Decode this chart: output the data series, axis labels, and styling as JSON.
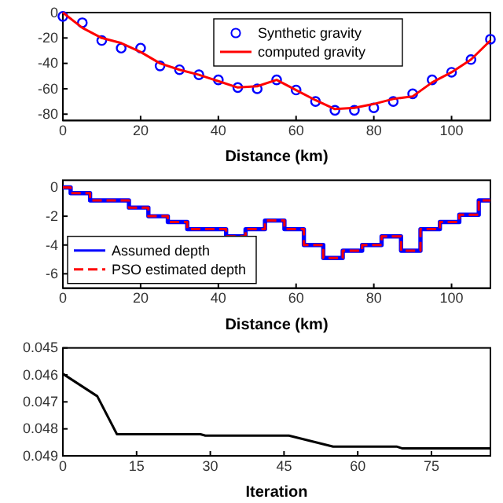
{
  "chart_data": [
    {
      "type": "scatter",
      "xlabel": "Distance (km)",
      "xlim": [
        0,
        110
      ],
      "xticks": [
        0,
        20,
        40,
        60,
        80,
        100
      ],
      "ylim": [
        -85,
        0
      ],
      "yticks": [
        -80,
        -60,
        -40,
        -20,
        0
      ],
      "legend": "top",
      "series": [
        {
          "name": "Synthetic gravity",
          "type": "scatter",
          "marker": "circle",
          "color": "#0000ff",
          "x": [
            0,
            5,
            10,
            15,
            20,
            25,
            30,
            35,
            40,
            45,
            50,
            55,
            60,
            65,
            70,
            75,
            80,
            85,
            90,
            95,
            100,
            105,
            110
          ],
          "values": [
            -3,
            -8,
            -22,
            -28,
            -28,
            -42,
            -45,
            -49,
            -53,
            -59,
            -60,
            -53,
            -61,
            -70,
            -77,
            -77,
            -75,
            -70,
            -64,
            -53,
            -47,
            -37,
            -21
          ]
        },
        {
          "name": "computed gravity",
          "type": "line",
          "color": "#ff0000",
          "line_style": "solid",
          "x": [
            0,
            5,
            10,
            15,
            20,
            25,
            30,
            35,
            40,
            45,
            50,
            55,
            60,
            65,
            70,
            75,
            80,
            85,
            90,
            95,
            100,
            105,
            110
          ],
          "values": [
            0,
            -12,
            -20,
            -24,
            -31,
            -40,
            -45,
            -49,
            -54,
            -59,
            -58,
            -53,
            -61,
            -69,
            -76,
            -75,
            -72,
            -68,
            -66,
            -55,
            -47,
            -37,
            -22
          ]
        }
      ]
    },
    {
      "type": "step",
      "xlabel": "Distance (km)",
      "xlim": [
        0,
        110
      ],
      "xticks": [
        0,
        20,
        40,
        60,
        80,
        100
      ],
      "ylim": [
        -7,
        0.5
      ],
      "yticks": [
        -6,
        -4,
        -2,
        0
      ],
      "legend": "bottom left",
      "series": [
        {
          "name": "Assumed depth",
          "color": "#0000ff",
          "line_style": "solid",
          "x": [
            0,
            2,
            7,
            17,
            22,
            27,
            32,
            42,
            47,
            52,
            57,
            62,
            67,
            72,
            77,
            82,
            87,
            92,
            97,
            102,
            107,
            110
          ],
          "values": [
            0,
            -0.4,
            -0.9,
            -1.4,
            -2,
            -2.4,
            -2.9,
            -3.4,
            -2.9,
            -2.3,
            -2.9,
            -4,
            -4.9,
            -4.4,
            -4,
            -3.4,
            -4.4,
            -2.9,
            -2.4,
            -1.9,
            -0.9,
            -0.9
          ]
        },
        {
          "name": "PSO estimated depth",
          "color": "#ff0000",
          "line_style": "dashed",
          "x": [
            0,
            2,
            7,
            17,
            22,
            27,
            32,
            42,
            47,
            52,
            57,
            62,
            67,
            72,
            77,
            82,
            87,
            92,
            97,
            102,
            107,
            110
          ],
          "values": [
            0,
            -0.4,
            -0.9,
            -1.4,
            -2,
            -2.4,
            -2.9,
            -3.4,
            -2.9,
            -2.3,
            -2.9,
            -4,
            -4.9,
            -4.4,
            -4,
            -3.4,
            -4.4,
            -2.9,
            -2.4,
            -1.9,
            -0.9,
            -0.9
          ]
        }
      ]
    },
    {
      "type": "line",
      "xlabel": "Iteration",
      "xlim": [
        0,
        87
      ],
      "xticks": [
        0,
        15,
        30,
        45,
        60,
        75
      ],
      "ylim": [
        0.049,
        0.045
      ],
      "yticks": [
        0.045,
        0.046,
        0.047,
        0.048,
        0.049
      ],
      "series": [
        {
          "color": "#000000",
          "line_style": "solid",
          "x": [
            0,
            7,
            11,
            28,
            29,
            46,
            55,
            68,
            69,
            87
          ],
          "values": [
            0.04596,
            0.04679,
            0.0482,
            0.0482,
            0.04825,
            0.04825,
            0.04866,
            0.04866,
            0.04872,
            0.04872
          ]
        }
      ]
    }
  ]
}
